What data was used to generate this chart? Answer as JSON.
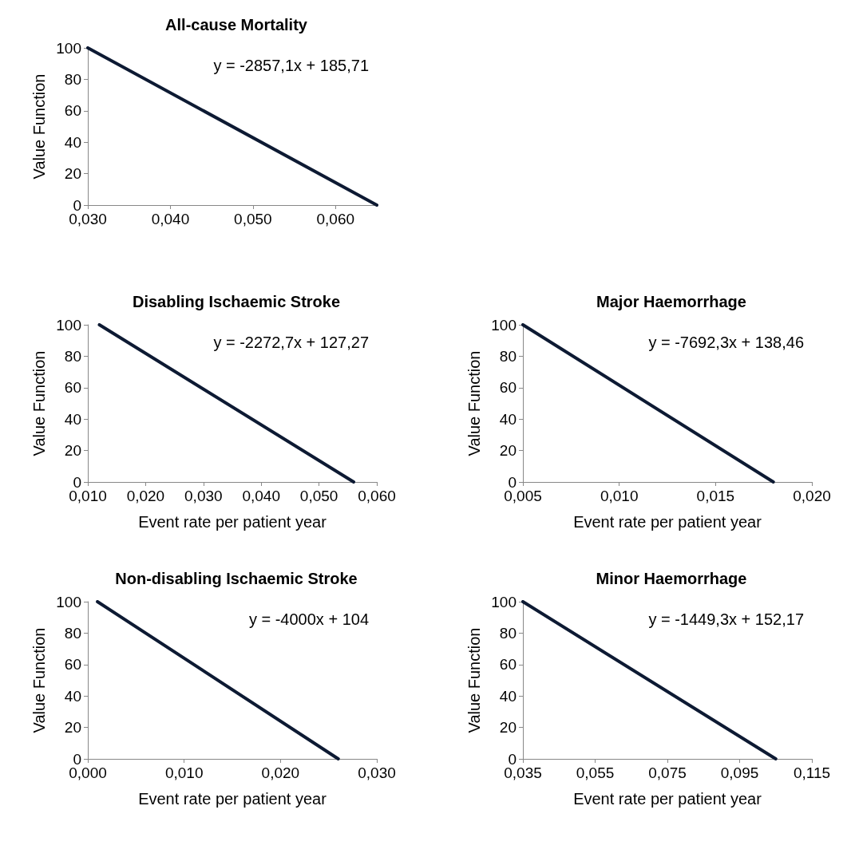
{
  "chart_data": [
    {
      "type": "line",
      "title": "All-cause Mortality",
      "ylabel": "Value Function",
      "x": [
        0.03,
        0.065
      ],
      "series": [
        {
          "color": "#0d1a33",
          "values": [
            100,
            0
          ]
        }
      ],
      "xlim": [
        0.03,
        0.065
      ],
      "xticks": [
        {
          "value": 0.03,
          "label": "0,030"
        },
        {
          "value": 0.04,
          "label": "0,040"
        },
        {
          "value": 0.05,
          "label": "0,050"
        },
        {
          "value": 0.06,
          "label": "0,060"
        }
      ],
      "ylim": [
        0,
        100
      ],
      "yticks": [
        0,
        20,
        40,
        60,
        80,
        100
      ],
      "annotations": [
        "y = -2857,1x + 185,71"
      ],
      "grid": false
    },
    {
      "type": "line",
      "title": "Disabling Ischaemic Stroke",
      "xlabel": "Event rate per patient year",
      "ylabel": "Value Function",
      "x": [
        0.012,
        0.056
      ],
      "series": [
        {
          "color": "#0d1a33",
          "values": [
            100,
            0
          ]
        }
      ],
      "xlim": [
        0.01,
        0.06
      ],
      "xticks": [
        {
          "value": 0.01,
          "label": "0,010"
        },
        {
          "value": 0.02,
          "label": "0,020"
        },
        {
          "value": 0.03,
          "label": "0,030"
        },
        {
          "value": 0.04,
          "label": "0,040"
        },
        {
          "value": 0.05,
          "label": "0,050"
        },
        {
          "value": 0.06,
          "label": "0,060"
        }
      ],
      "ylim": [
        0,
        100
      ],
      "yticks": [
        0,
        20,
        40,
        60,
        80,
        100
      ],
      "annotations": [
        "y = -2272,7x + 127,27"
      ],
      "grid": false
    },
    {
      "type": "line",
      "title": "Major Haemorrhage",
      "xlabel": "Event rate per patient year",
      "ylabel": "Value Function",
      "x": [
        0.005,
        0.018
      ],
      "series": [
        {
          "color": "#0d1a33",
          "values": [
            100,
            0
          ]
        }
      ],
      "xlim": [
        0.005,
        0.02
      ],
      "xticks": [
        {
          "value": 0.005,
          "label": "0,005"
        },
        {
          "value": 0.01,
          "label": "0,010"
        },
        {
          "value": 0.015,
          "label": "0,015"
        },
        {
          "value": 0.02,
          "label": "0,020"
        }
      ],
      "ylim": [
        0,
        100
      ],
      "yticks": [
        0,
        20,
        40,
        60,
        80,
        100
      ],
      "annotations": [
        "y = -7692,3x + 138,46"
      ],
      "grid": false
    },
    {
      "type": "line",
      "title": "Non-disabling Ischaemic Stroke",
      "xlabel": "Event rate per patient year",
      "ylabel": "Value Function",
      "x": [
        0.001,
        0.026
      ],
      "series": [
        {
          "color": "#0d1a33",
          "values": [
            100,
            0
          ]
        }
      ],
      "xlim": [
        0.0,
        0.03
      ],
      "xticks": [
        {
          "value": 0.0,
          "label": "0,000"
        },
        {
          "value": 0.01,
          "label": "0,010"
        },
        {
          "value": 0.02,
          "label": "0,020"
        },
        {
          "value": 0.03,
          "label": "0,030"
        }
      ],
      "ylim": [
        0,
        100
      ],
      "yticks": [
        0,
        20,
        40,
        60,
        80,
        100
      ],
      "annotations": [
        "y = -4000x + 104"
      ],
      "grid": false
    },
    {
      "type": "line",
      "title": "Minor Haemorrhage",
      "xlabel": "Event rate per patient year",
      "ylabel": "Value Function",
      "x": [
        0.035,
        0.105
      ],
      "series": [
        {
          "color": "#0d1a33",
          "values": [
            100,
            0
          ]
        }
      ],
      "xlim": [
        0.035,
        0.115
      ],
      "xticks": [
        {
          "value": 0.035,
          "label": "0,035"
        },
        {
          "value": 0.055,
          "label": "0,055"
        },
        {
          "value": 0.075,
          "label": "0,075"
        },
        {
          "value": 0.095,
          "label": "0,095"
        },
        {
          "value": 0.115,
          "label": "0,115"
        }
      ],
      "ylim": [
        0,
        100
      ],
      "yticks": [
        0,
        20,
        40,
        60,
        80,
        100
      ],
      "annotations": [
        "y = -1449,3x + 152,17"
      ],
      "grid": false
    }
  ]
}
